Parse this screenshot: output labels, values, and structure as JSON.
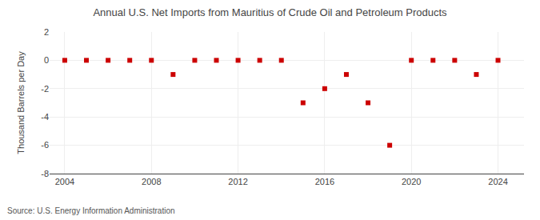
{
  "chart_data": {
    "type": "scatter",
    "title": "Annual U.S. Net Imports from Mauritius of Crude Oil and Petroleum Products",
    "ylabel": "Thousand Barrels per Day",
    "annotations": [
      "Source: U.S. Energy Information Administration"
    ],
    "x": [
      2004,
      2005,
      2006,
      2007,
      2008,
      2009,
      2010,
      2011,
      2012,
      2013,
      2014,
      2015,
      2016,
      2017,
      2018,
      2019,
      2020,
      2021,
      2022,
      2023,
      2024
    ],
    "values": [
      0,
      0,
      0,
      0,
      0,
      -1,
      0,
      0,
      0,
      0,
      0,
      -3,
      -2,
      -1,
      -3,
      -6,
      0,
      0,
      0,
      -1,
      0
    ],
    "color": "#cc0000",
    "marker": "square",
    "xlim": [
      2003.3,
      2025.2
    ],
    "xticks": [
      2004,
      2008,
      2012,
      2016,
      2020,
      2024
    ],
    "ylim": [
      -8,
      2
    ],
    "yticks": [
      -8,
      -6,
      -4,
      -2,
      0,
      2
    ],
    "grid": true
  }
}
